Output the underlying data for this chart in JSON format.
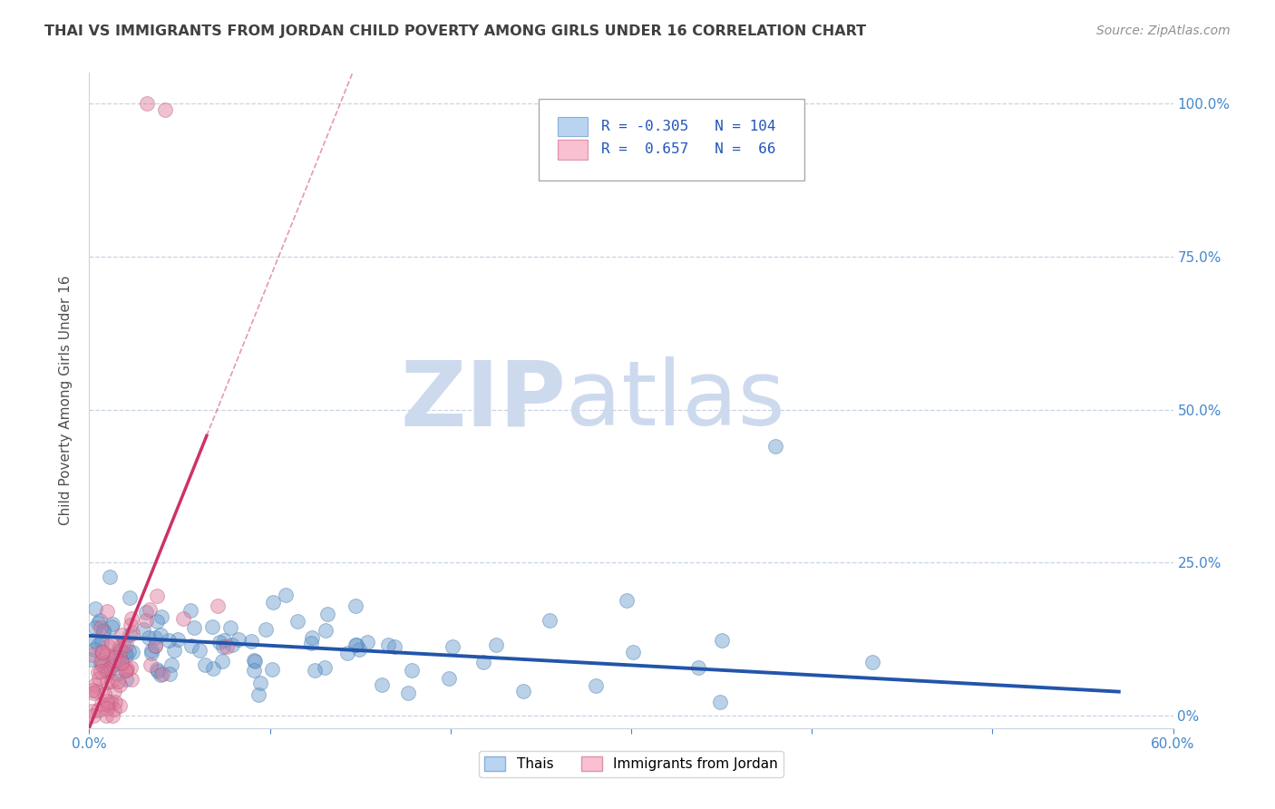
{
  "title": "THAI VS IMMIGRANTS FROM JORDAN CHILD POVERTY AMONG GIRLS UNDER 16 CORRELATION CHART",
  "source": "Source: ZipAtlas.com",
  "ylabel": "Child Poverty Among Girls Under 16",
  "ytick_labels": [
    "0%",
    "25.0%",
    "50.0%",
    "75.0%",
    "100.0%"
  ],
  "ytick_values": [
    0,
    0.25,
    0.5,
    0.75,
    1.0
  ],
  "xlim": [
    0.0,
    0.6
  ],
  "ylim": [
    -0.02,
    1.05
  ],
  "legend_items": [
    {
      "color": "#b8d4f0",
      "R": "-0.305",
      "N": "104"
    },
    {
      "color": "#f8c0d0",
      "R": "0.657",
      "N": "66"
    }
  ],
  "legend_labels": [
    "Thais",
    "Immigrants from Jordan"
  ],
  "watermark_zip": "ZIP",
  "watermark_atlas": "atlas",
  "watermark_color": "#cddaee",
  "title_color": "#404040",
  "source_color": "#909090",
  "axis_color": "#4488cc",
  "grid_color": "#c8d4e4",
  "blue_scatter_color": "#6699cc",
  "blue_scatter_edge": "#4477aa",
  "pink_scatter_color": "#dd7799",
  "pink_scatter_edge": "#bb5577",
  "blue_line_color": "#2255aa",
  "pink_line_color": "#cc3366",
  "blue_R": -0.305,
  "blue_N": 104,
  "pink_R": 0.657,
  "pink_N": 66,
  "random_seed_blue": 42,
  "random_seed_pink": 123
}
